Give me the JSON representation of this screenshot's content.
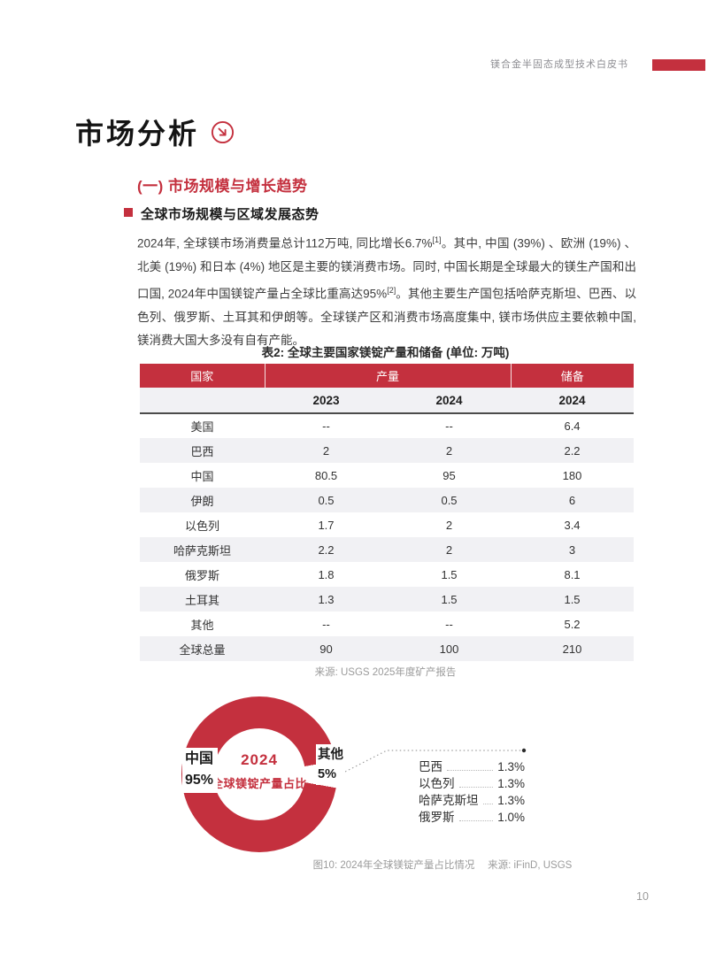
{
  "colors": {
    "brand_red": "#C4303E",
    "table_alt_row": "#F1F1F4",
    "muted_gray": "#9B9B9B"
  },
  "header": {
    "doc_title": "镁合金半固态成型技术白皮书"
  },
  "page": {
    "title": "市场分析",
    "number": "10"
  },
  "section": {
    "heading": "(一) 市场规模与增长趋势",
    "subheading": "全球市场规模与区域发展态势",
    "paragraph": {
      "part1": "2024年, 全球镁市场消费量总计112万吨, 同比增长6.7%",
      "ref1": "[1]",
      "part2": "。其中, 中国 (39%) 、欧洲 (19%) 、北美 (19%) 和日本 (4%) 地区是主要的镁消费市场。同时, 中国长期是全球最大的镁生产国和出口国, 2024年中国镁锭产量占全球比重高达95%",
      "ref2": "[2]",
      "part3": "。其他主要生产国包括哈萨克斯坦、巴西、以色列、俄罗斯、土耳其和伊朗等。全球镁产区和消费市场高度集中, 镁市场供应主要依赖中国, 镁消费大国大多没有自有产能。"
    }
  },
  "table": {
    "title": "表2: 全球主要国家镁锭产量和储备 (单位: 万吨)",
    "col_country": "国家",
    "col_production": "产量",
    "col_reserves": "储备",
    "year_headers": [
      "2023",
      "2024",
      "2024"
    ],
    "rows": [
      {
        "country": "美国",
        "p2023": "--",
        "p2024": "--",
        "r2024": "6.4"
      },
      {
        "country": "巴西",
        "p2023": "2",
        "p2024": "2",
        "r2024": "2.2"
      },
      {
        "country": "中国",
        "p2023": "80.5",
        "p2024": "95",
        "r2024": "180"
      },
      {
        "country": "伊朗",
        "p2023": "0.5",
        "p2024": "0.5",
        "r2024": "6"
      },
      {
        "country": "以色列",
        "p2023": "1.7",
        "p2024": "2",
        "r2024": "3.4"
      },
      {
        "country": "哈萨克斯坦",
        "p2023": "2.2",
        "p2024": "2",
        "r2024": "3"
      },
      {
        "country": "俄罗斯",
        "p2023": "1.8",
        "p2024": "1.5",
        "r2024": "8.1"
      },
      {
        "country": "土耳其",
        "p2023": "1.3",
        "p2024": "1.5",
        "r2024": "1.5"
      },
      {
        "country": "其他",
        "p2023": "--",
        "p2024": "--",
        "r2024": "5.2"
      },
      {
        "country": "全球总量",
        "p2023": "90",
        "p2024": "100",
        "r2024": "210"
      }
    ],
    "source": "来源: USGS 2025年度矿产报告"
  },
  "chart": {
    "center_line1": "2024",
    "center_line2": "全球镁锭产量占比",
    "china_label": "中国",
    "china_value": "95%",
    "other_label": "其他",
    "other_value": "5%",
    "legend": [
      {
        "label": "巴西",
        "value": "1.3%"
      },
      {
        "label": "以色列",
        "value": "1.3%"
      },
      {
        "label": "哈萨克斯坦",
        "value": "1.3%"
      },
      {
        "label": "俄罗斯",
        "value": "1.0%"
      }
    ],
    "caption": "图10: 2024年全球镁锭产量占比情况　 来源: iFinD, USGS"
  },
  "chart_data": {
    "type": "pie",
    "title": "2024 全球镁锭产量占比",
    "unit": "percent",
    "slices": [
      {
        "label": "中国",
        "value": 95
      },
      {
        "label": "其他",
        "value": 5
      }
    ],
    "other_breakdown": [
      {
        "label": "巴西",
        "value": 1.3
      },
      {
        "label": "以色列",
        "value": 1.3
      },
      {
        "label": "哈萨克斯坦",
        "value": 1.3
      },
      {
        "label": "俄罗斯",
        "value": 1.0
      }
    ],
    "legend_position": "right",
    "donut": true,
    "inner_radius_ratio": 0.59,
    "slice_colors": {
      "中国": "#C4303E",
      "其他": "#FFFFFF"
    }
  }
}
